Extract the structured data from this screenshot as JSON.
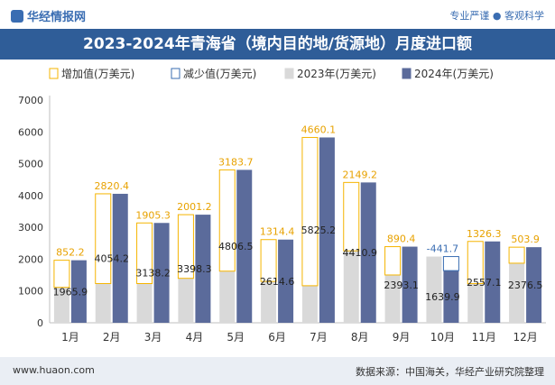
{
  "header": {
    "logo_text": "华经情报网",
    "slogan": "专业严谨 ● 客观科学"
  },
  "footer": {
    "website": "www.huaon.com",
    "source": "数据来源：中国海关，华经产业研究院整理"
  },
  "colors": {
    "title_bg": "#2f5d98",
    "increase": "#f5b400",
    "decrease": "#3a6db2",
    "y2023": "#d9d9d9",
    "y2024": "#5b6b9b"
  },
  "chart_data": {
    "type": "bar",
    "title": "2023-2024年青海省（境内目的地/货源地）月度进口额",
    "categories": [
      "1月",
      "2月",
      "3月",
      "4月",
      "5月",
      "6月",
      "7月",
      "8月",
      "9月",
      "10月",
      "11月",
      "12月"
    ],
    "series": [
      {
        "name": "增加值(万美元)",
        "values": [
          852.2,
          2820.4,
          1905.3,
          2001.2,
          3183.7,
          1314.4,
          4660.1,
          2149.2,
          890.4,
          null,
          1326.3,
          503.9
        ]
      },
      {
        "name": "减少值(万美元)",
        "values": [
          null,
          null,
          null,
          null,
          null,
          null,
          null,
          null,
          null,
          -441.7,
          null,
          null
        ]
      },
      {
        "name": "2023年(万美元)",
        "values": [
          1113.7,
          1233.8,
          1232.9,
          1397.1,
          1622.8,
          1300.2,
          1165.1,
          2261.7,
          1502.7,
          2081.6,
          1230.8,
          1872.6
        ]
      },
      {
        "name": "2024年(万美元)",
        "values": [
          1965.9,
          4054.2,
          3138.2,
          3398.3,
          4806.5,
          2614.6,
          5825.2,
          4410.9,
          2393.1,
          1639.9,
          2557.1,
          2376.5
        ]
      }
    ],
    "value_labels_increase": [
      "852.2",
      "2820.4",
      "1905.3",
      "2001.2",
      "3183.7",
      "1314.4",
      "4660.1",
      "2149.2",
      "890.4",
      "-441.7",
      "1326.3",
      "503.9"
    ],
    "value_labels_2024": [
      "1965.9",
      "4054.2",
      "3138.2",
      "3398.3",
      "4806.5",
      "2614.6",
      "5825.2",
      "4410.9",
      "2393.1",
      "1639.9",
      "2557.1",
      "2376.5"
    ],
    "ylim": [
      0,
      7000
    ],
    "yticks": [
      0,
      1000,
      2000,
      3000,
      4000,
      5000,
      6000,
      7000
    ],
    "legend_position": "top-left",
    "grid": false
  }
}
